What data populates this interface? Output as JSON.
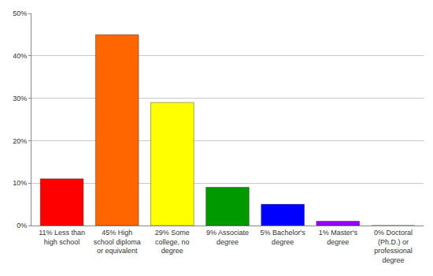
{
  "chart_data": {
    "type": "bar",
    "categories": [
      "11% Less than high school",
      "45% High school diploma or equivalent",
      "29% Some college, no degree",
      "9% Associate degree",
      "5% Bachelor's degree",
      "1% Master's degree",
      "0% Doctoral (Ph.D.) or professional degree"
    ],
    "values": [
      11,
      45,
      29,
      9,
      5,
      1,
      0
    ],
    "colors": [
      "#ff0000",
      "#ff6600",
      "#ffff00",
      "#009900",
      "#0000ff",
      "#9900ff",
      "#ff00ff"
    ],
    "ylim": [
      0,
      50
    ],
    "yticks": [
      {
        "value": 0,
        "label": "0%"
      },
      {
        "value": 10,
        "label": "10%"
      },
      {
        "value": 20,
        "label": "20%"
      },
      {
        "value": 30,
        "label": "30%"
      },
      {
        "value": 40,
        "label": "40%"
      },
      {
        "value": 50,
        "label": "50%"
      }
    ],
    "grid": true
  }
}
